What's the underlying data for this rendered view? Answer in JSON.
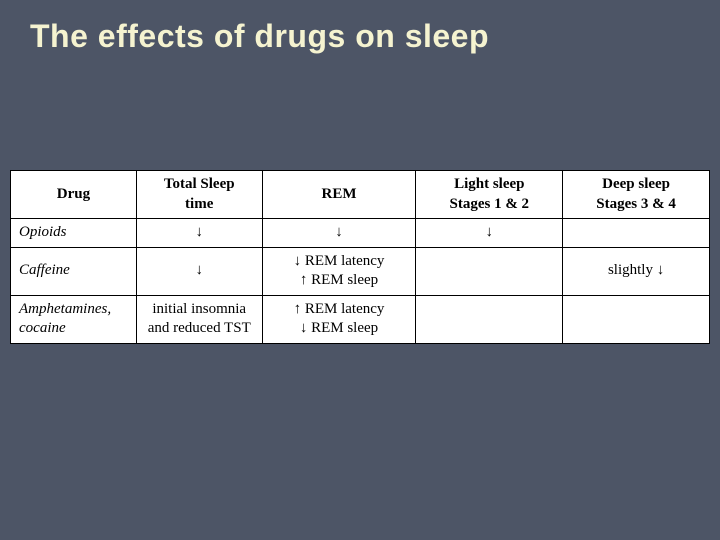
{
  "slide": {
    "title": "The effects of drugs on sleep",
    "background_color": "#4d5566",
    "title_color": "#f5f3d0"
  },
  "table": {
    "columns": [
      {
        "key": "drug",
        "label": "Drug",
        "sub": ""
      },
      {
        "key": "tst",
        "label": "Total Sleep",
        "sub": "time"
      },
      {
        "key": "rem",
        "label": "REM",
        "sub": ""
      },
      {
        "key": "light",
        "label": "Light sleep",
        "sub": "Stages 1 & 2"
      },
      {
        "key": "deep",
        "label": "Deep sleep",
        "sub": "Stages 3 & 4"
      }
    ],
    "rows": [
      {
        "drug": "Opioids",
        "tst": "↓",
        "rem": "↓",
        "light": "↓",
        "deep": ""
      },
      {
        "drug": "Caffeine",
        "tst": "↓",
        "rem": "↓ REM latency\n↑ REM sleep",
        "light": "",
        "deep": "slightly ↓"
      },
      {
        "drug": "Amphetamines, cocaine",
        "tst": "initial insomnia and reduced TST",
        "rem": "↑ REM latency\n↓ REM sleep",
        "light": "",
        "deep": ""
      }
    ]
  }
}
